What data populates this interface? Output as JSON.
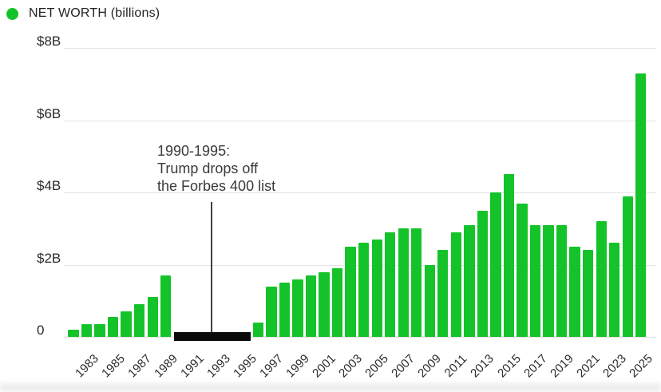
{
  "legend": {
    "label": "NET WORTH (billions)",
    "marker_color": "#14c32a"
  },
  "chart_data": {
    "type": "bar",
    "title": "NET WORTH (billions)",
    "unit": "billions of dollars",
    "x": [
      1982,
      1983,
      1984,
      1985,
      1986,
      1987,
      1988,
      1989,
      1990,
      1991,
      1992,
      1993,
      1994,
      1995,
      1996,
      1997,
      1998,
      1999,
      2000,
      2001,
      2002,
      2003,
      2004,
      2005,
      2006,
      2007,
      2008,
      2009,
      2010,
      2011,
      2012,
      2013,
      2014,
      2015,
      2016,
      2017,
      2018,
      2019,
      2020,
      2021,
      2022,
      2023,
      2024,
      2025
    ],
    "series": [
      {
        "name": "Net worth",
        "values": [
          0.2,
          0.35,
          0.35,
          0.55,
          0.7,
          0.9,
          1.1,
          1.7,
          null,
          null,
          null,
          null,
          null,
          null,
          0.4,
          1.4,
          1.5,
          1.6,
          1.7,
          1.8,
          1.9,
          2.5,
          2.6,
          2.7,
          2.9,
          3.0,
          3.0,
          2.0,
          2.4,
          2.9,
          3.1,
          3.5,
          4.0,
          4.5,
          3.7,
          3.1,
          3.1,
          3.1,
          2.5,
          2.4,
          3.2,
          2.6,
          3.9,
          7.3
        ]
      }
    ],
    "gap": {
      "start_year": 1990,
      "end_year": 1995,
      "color": "#0b0b0b",
      "reason": "Trump drops off the Forbes 400 list"
    },
    "y_ticks": [
      {
        "label": "$8B",
        "value": 8
      },
      {
        "label": "$6B",
        "value": 6
      },
      {
        "label": "$4B",
        "value": 4
      },
      {
        "label": "$2B",
        "value": 2
      },
      {
        "label": "0",
        "value": 0
      }
    ],
    "x_tick_labels": [
      "1983",
      "1985",
      "1987",
      "1989",
      "1991",
      "1993",
      "1995",
      "1997",
      "1999",
      "2001",
      "2003",
      "2005",
      "2007",
      "2009",
      "2011",
      "2013",
      "2015",
      "2017",
      "2019",
      "2021",
      "2023",
      "2025"
    ],
    "ylim": [
      0,
      8.6
    ],
    "grid": true,
    "legend_position": "top-left",
    "bar_color": "#14c32a",
    "annotation": {
      "lines": [
        "1990-1995:",
        "Trump drops off",
        "the Forbes 400 list"
      ]
    }
  }
}
